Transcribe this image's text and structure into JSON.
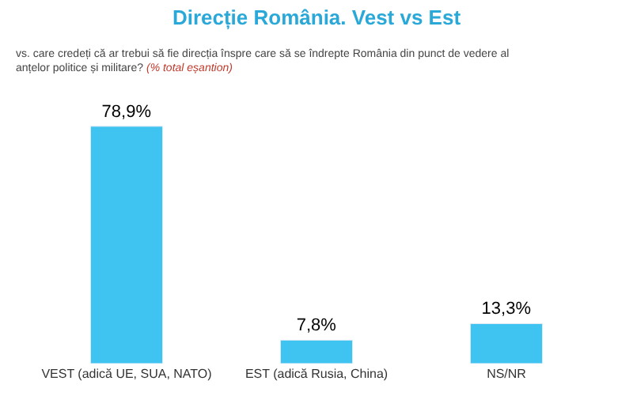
{
  "chart_data": {
    "type": "bar",
    "title": "Direcție România. Vest vs Est",
    "subtitle": "vs. care credeți că ar trebui să fie direcția înspre care să se îndrepte România din punct de vedere al\nanțelor politice și militare?",
    "annotations": [
      "(% total eșantion)"
    ],
    "categories": [
      "VEST (adică UE, SUA, NATO)",
      "EST (adică Rusia, China)",
      "NS/NR"
    ],
    "values": [
      78.9,
      7.8,
      13.3
    ],
    "value_labels": [
      "78,9%",
      "7,8%",
      "13,3%"
    ],
    "color": "#3fc4f2",
    "legend": false
  }
}
